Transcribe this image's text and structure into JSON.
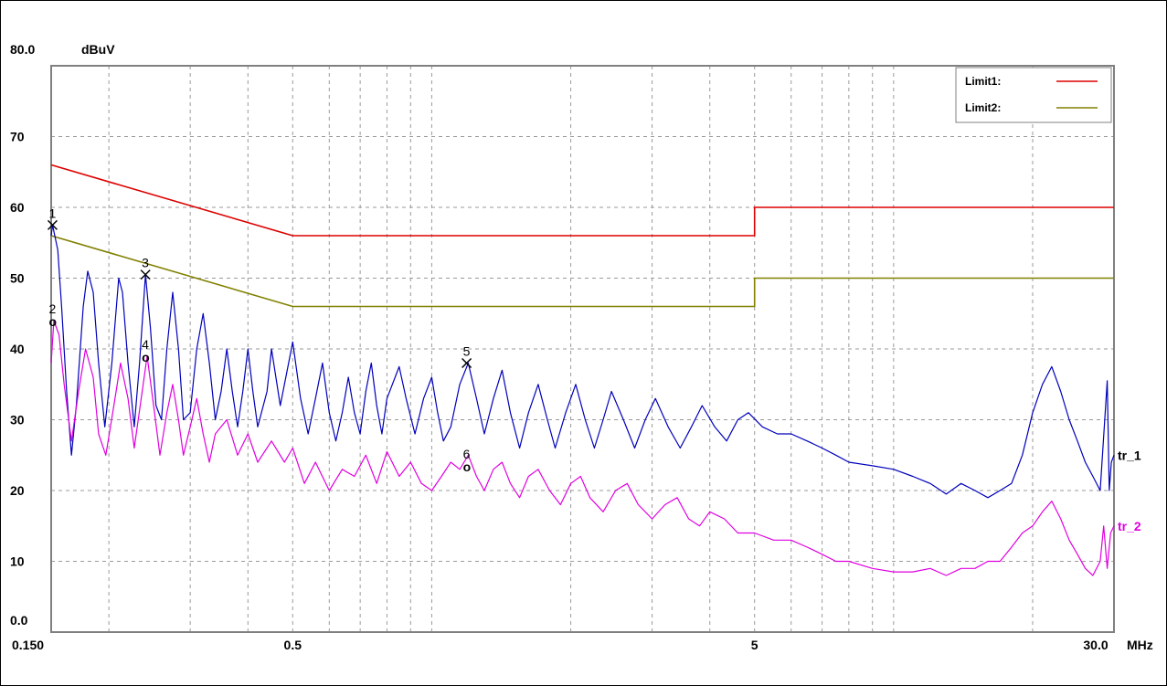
{
  "chart_data": {
    "type": "line",
    "title": "",
    "ylabel": "dBuV",
    "xlabel": "MHz",
    "x_scale": "log",
    "xlim": [
      0.15,
      30
    ],
    "ylim": [
      0,
      80
    ],
    "grid": true,
    "legend": "top-right",
    "colors": {
      "limit1": "#dd0000",
      "limit2": "#808000",
      "tr_1": "#0000bb",
      "tr_2": "#e000e0"
    },
    "y_ticks": [
      {
        "value": 80,
        "label": "80.0"
      },
      {
        "value": 70,
        "label": "70"
      },
      {
        "value": 60,
        "label": "60"
      },
      {
        "value": 50,
        "label": "50"
      },
      {
        "value": 40,
        "label": "40"
      },
      {
        "value": 30,
        "label": "30"
      },
      {
        "value": 20,
        "label": "20"
      },
      {
        "value": 10,
        "label": "10"
      },
      {
        "value": 0,
        "label": "0.0"
      }
    ],
    "x_ticks": [
      {
        "value": 0.15,
        "label": "0.150"
      },
      {
        "value": 0.5,
        "label": "0.5"
      },
      {
        "value": 5,
        "label": "5"
      },
      {
        "value": 30,
        "label": "30.0"
      }
    ],
    "x_gridlines": [
      0.2,
      0.3,
      0.4,
      0.5,
      0.6,
      0.7,
      0.8,
      0.9,
      1,
      2,
      3,
      4,
      5,
      6,
      7,
      8,
      9,
      10,
      20
    ],
    "limits": [
      {
        "name": "Limit1:",
        "points": [
          [
            0.15,
            66
          ],
          [
            0.5,
            56
          ],
          [
            5,
            56
          ],
          [
            5,
            60
          ],
          [
            30,
            60
          ]
        ]
      },
      {
        "name": "Limit2:",
        "points": [
          [
            0.15,
            56
          ],
          [
            0.5,
            46
          ],
          [
            5,
            46
          ],
          [
            5,
            50
          ],
          [
            30,
            50
          ]
        ]
      }
    ],
    "series": [
      {
        "name": "tr_1",
        "points": [
          [
            0.15,
            56
          ],
          [
            0.151,
            57.5
          ],
          [
            0.155,
            54
          ],
          [
            0.158,
            46
          ],
          [
            0.162,
            34
          ],
          [
            0.166,
            25
          ],
          [
            0.17,
            32
          ],
          [
            0.176,
            46
          ],
          [
            0.18,
            51
          ],
          [
            0.185,
            48
          ],
          [
            0.19,
            38
          ],
          [
            0.196,
            29
          ],
          [
            0.203,
            38
          ],
          [
            0.21,
            50
          ],
          [
            0.214,
            48
          ],
          [
            0.22,
            38
          ],
          [
            0.227,
            29
          ],
          [
            0.233,
            38
          ],
          [
            0.24,
            50.5
          ],
          [
            0.246,
            43
          ],
          [
            0.253,
            32
          ],
          [
            0.26,
            30
          ],
          [
            0.267,
            40
          ],
          [
            0.275,
            48
          ],
          [
            0.283,
            40
          ],
          [
            0.29,
            30
          ],
          [
            0.3,
            31
          ],
          [
            0.31,
            40
          ],
          [
            0.32,
            45
          ],
          [
            0.33,
            38
          ],
          [
            0.34,
            30
          ],
          [
            0.35,
            34
          ],
          [
            0.36,
            40
          ],
          [
            0.37,
            34
          ],
          [
            0.38,
            29
          ],
          [
            0.39,
            34
          ],
          [
            0.4,
            40
          ],
          [
            0.41,
            34
          ],
          [
            0.42,
            29
          ],
          [
            0.44,
            34
          ],
          [
            0.45,
            40
          ],
          [
            0.47,
            32
          ],
          [
            0.49,
            38
          ],
          [
            0.5,
            41
          ],
          [
            0.52,
            33
          ],
          [
            0.54,
            28
          ],
          [
            0.56,
            33
          ],
          [
            0.58,
            38
          ],
          [
            0.6,
            31
          ],
          [
            0.62,
            27
          ],
          [
            0.64,
            31
          ],
          [
            0.66,
            36
          ],
          [
            0.68,
            31
          ],
          [
            0.7,
            28
          ],
          [
            0.72,
            34
          ],
          [
            0.74,
            38
          ],
          [
            0.76,
            32
          ],
          [
            0.78,
            28
          ],
          [
            0.8,
            33
          ],
          [
            0.85,
            37.5
          ],
          [
            0.88,
            33
          ],
          [
            0.92,
            28
          ],
          [
            0.96,
            33
          ],
          [
            1.0,
            36
          ],
          [
            1.03,
            31
          ],
          [
            1.06,
            27
          ],
          [
            1.1,
            29
          ],
          [
            1.15,
            35
          ],
          [
            1.2,
            38
          ],
          [
            1.25,
            33
          ],
          [
            1.3,
            28
          ],
          [
            1.36,
            33
          ],
          [
            1.42,
            37
          ],
          [
            1.48,
            31
          ],
          [
            1.55,
            26
          ],
          [
            1.62,
            31
          ],
          [
            1.7,
            35
          ],
          [
            1.78,
            30
          ],
          [
            1.85,
            26
          ],
          [
            1.95,
            31
          ],
          [
            2.05,
            35
          ],
          [
            2.15,
            30
          ],
          [
            2.25,
            26
          ],
          [
            2.35,
            30
          ],
          [
            2.45,
            34
          ],
          [
            2.6,
            30
          ],
          [
            2.75,
            26
          ],
          [
            2.9,
            30
          ],
          [
            3.05,
            33
          ],
          [
            3.25,
            29
          ],
          [
            3.45,
            26
          ],
          [
            3.65,
            29
          ],
          [
            3.85,
            32
          ],
          [
            4.1,
            29
          ],
          [
            4.35,
            27
          ],
          [
            4.6,
            30
          ],
          [
            4.85,
            31
          ],
          [
            5.2,
            29
          ],
          [
            5.6,
            28
          ],
          [
            6.0,
            28
          ],
          [
            6.5,
            27
          ],
          [
            7.0,
            26
          ],
          [
            7.5,
            25
          ],
          [
            8.0,
            24
          ],
          [
            9.0,
            23.5
          ],
          [
            10.0,
            23
          ],
          [
            11.0,
            22
          ],
          [
            12.0,
            21
          ],
          [
            13.0,
            19.5
          ],
          [
            14.0,
            21
          ],
          [
            15.0,
            20
          ],
          [
            16.0,
            19
          ],
          [
            17.0,
            20
          ],
          [
            18.0,
            21
          ],
          [
            19.0,
            25
          ],
          [
            20.0,
            31
          ],
          [
            21.0,
            35
          ],
          [
            22.0,
            37.5
          ],
          [
            23.0,
            34
          ],
          [
            24.0,
            30
          ],
          [
            25.0,
            27
          ],
          [
            26.0,
            24
          ],
          [
            27.0,
            22
          ],
          [
            28.0,
            20
          ],
          [
            29.0,
            35.5
          ],
          [
            29.3,
            20
          ],
          [
            29.6,
            24
          ],
          [
            30.0,
            25
          ]
        ]
      },
      {
        "name": "tr_2",
        "points": [
          [
            0.15,
            38
          ],
          [
            0.152,
            44
          ],
          [
            0.156,
            42
          ],
          [
            0.16,
            35
          ],
          [
            0.166,
            27
          ],
          [
            0.172,
            34
          ],
          [
            0.178,
            40
          ],
          [
            0.185,
            36
          ],
          [
            0.19,
            28
          ],
          [
            0.197,
            25
          ],
          [
            0.205,
            32
          ],
          [
            0.212,
            38
          ],
          [
            0.22,
            33
          ],
          [
            0.227,
            26
          ],
          [
            0.235,
            33
          ],
          [
            0.242,
            39
          ],
          [
            0.25,
            32
          ],
          [
            0.258,
            25
          ],
          [
            0.267,
            31
          ],
          [
            0.275,
            35
          ],
          [
            0.283,
            30
          ],
          [
            0.29,
            25
          ],
          [
            0.3,
            29
          ],
          [
            0.31,
            33
          ],
          [
            0.32,
            28
          ],
          [
            0.33,
            24
          ],
          [
            0.34,
            28
          ],
          [
            0.36,
            30
          ],
          [
            0.38,
            25
          ],
          [
            0.4,
            28
          ],
          [
            0.42,
            24
          ],
          [
            0.45,
            27
          ],
          [
            0.48,
            24
          ],
          [
            0.5,
            26
          ],
          [
            0.53,
            21
          ],
          [
            0.56,
            24
          ],
          [
            0.6,
            20
          ],
          [
            0.64,
            23
          ],
          [
            0.68,
            22
          ],
          [
            0.72,
            25
          ],
          [
            0.76,
            21
          ],
          [
            0.8,
            25.5
          ],
          [
            0.85,
            22
          ],
          [
            0.9,
            24
          ],
          [
            0.95,
            21
          ],
          [
            1.0,
            20
          ],
          [
            1.05,
            22
          ],
          [
            1.1,
            24
          ],
          [
            1.15,
            23
          ],
          [
            1.2,
            25
          ],
          [
            1.25,
            22
          ],
          [
            1.3,
            20
          ],
          [
            1.36,
            23
          ],
          [
            1.42,
            24
          ],
          [
            1.48,
            21
          ],
          [
            1.55,
            19
          ],
          [
            1.62,
            22
          ],
          [
            1.7,
            23
          ],
          [
            1.8,
            20
          ],
          [
            1.9,
            18
          ],
          [
            2.0,
            21
          ],
          [
            2.1,
            22
          ],
          [
            2.2,
            19
          ],
          [
            2.35,
            17
          ],
          [
            2.5,
            20
          ],
          [
            2.65,
            21
          ],
          [
            2.8,
            18
          ],
          [
            3.0,
            16
          ],
          [
            3.2,
            18
          ],
          [
            3.4,
            19
          ],
          [
            3.6,
            16
          ],
          [
            3.8,
            15
          ],
          [
            4.0,
            17
          ],
          [
            4.3,
            16
          ],
          [
            4.6,
            14
          ],
          [
            5.0,
            14
          ],
          [
            5.5,
            13
          ],
          [
            6.0,
            13
          ],
          [
            6.5,
            12
          ],
          [
            7.0,
            11
          ],
          [
            7.5,
            10
          ],
          [
            8.0,
            10
          ],
          [
            9.0,
            9
          ],
          [
            10.0,
            8.5
          ],
          [
            11.0,
            8.5
          ],
          [
            12.0,
            9
          ],
          [
            13.0,
            8
          ],
          [
            14.0,
            9
          ],
          [
            15.0,
            9
          ],
          [
            16.0,
            10
          ],
          [
            17.0,
            10
          ],
          [
            18.0,
            12
          ],
          [
            19.0,
            14
          ],
          [
            20.0,
            15
          ],
          [
            21.0,
            17
          ],
          [
            22.0,
            18.5
          ],
          [
            23.0,
            16
          ],
          [
            24.0,
            13
          ],
          [
            25.0,
            11
          ],
          [
            26.0,
            9
          ],
          [
            27.0,
            8
          ],
          [
            28.0,
            10
          ],
          [
            28.5,
            15
          ],
          [
            29.0,
            9
          ],
          [
            29.5,
            14
          ],
          [
            30.0,
            15
          ]
        ]
      }
    ],
    "markers": [
      {
        "label": "1",
        "symbol": "X",
        "series": "tr_1",
        "x": 0.151,
        "y": 57.5
      },
      {
        "label": "2",
        "symbol": "o",
        "series": "tr_2",
        "x": 0.151,
        "y": 44.5
      },
      {
        "label": "3",
        "symbol": "X",
        "series": "tr_1",
        "x": 0.24,
        "y": 50.5
      },
      {
        "label": "4",
        "symbol": "o",
        "series": "tr_2",
        "x": 0.24,
        "y": 39.5
      },
      {
        "label": "5",
        "symbol": "X",
        "series": "tr_1",
        "x": 1.19,
        "y": 38
      },
      {
        "label": "6",
        "symbol": "o",
        "series": "tr_2",
        "x": 1.19,
        "y": 24
      }
    ]
  }
}
